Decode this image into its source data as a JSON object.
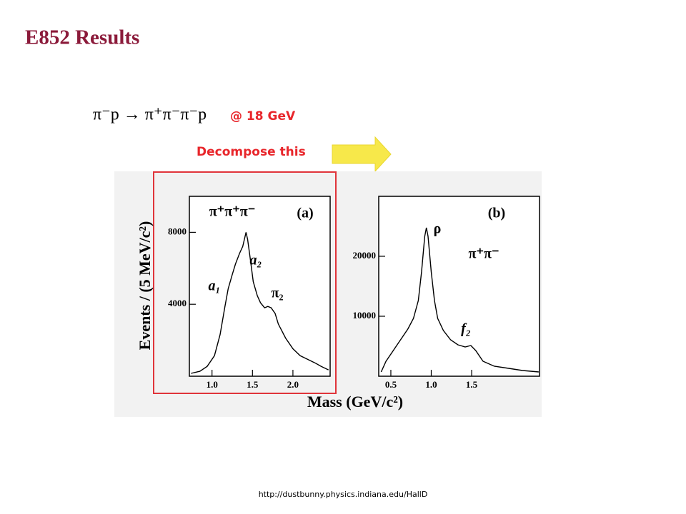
{
  "title": "E852 Results",
  "reaction": "π⁻p → π⁺π⁻π⁻p",
  "energy": "@ 18 GeV",
  "decompose_label": "Decompose this",
  "footer_url": "http://dustbunny.physics.indiana.edu/HallD",
  "figure": {
    "y_label": "Events / (5 MeV/c²)",
    "x_label": "Mass (GeV/c²)"
  },
  "chart_data": [
    {
      "type": "line",
      "annotations": [
        "π⁺π⁺π⁻",
        "(a)",
        "a₂",
        "a₁",
        "π₂"
      ],
      "xlim": [
        0.72,
        2.46
      ],
      "xticks": [
        {
          "value": 1.0,
          "label": "1.0"
        },
        1.5,
        {
          "value": 2.0,
          "label": "2.0"
        }
      ],
      "ylim": [
        0,
        10000
      ],
      "yticks": [
        4000,
        8000
      ],
      "series": [
        {
          "color": "#000000",
          "x": [
            0.74,
            0.85,
            0.94,
            1.03,
            1.1,
            1.16,
            1.2,
            1.25,
            1.29,
            1.34,
            1.38,
            1.42,
            1.44,
            1.47,
            1.51,
            1.56,
            1.6,
            1.65,
            1.69,
            1.73,
            1.78,
            1.82,
            1.91,
            2.0,
            2.09,
            2.18,
            2.27,
            2.35,
            2.44
          ],
          "values": [
            157,
            275,
            549,
            1137,
            2314,
            3882,
            4863,
            5647,
            6235,
            6824,
            7216,
            8000,
            7608,
            6627,
            5255,
            4471,
            4078,
            3804,
            3882,
            3804,
            3490,
            2902,
            2118,
            1529,
            1137,
            941,
            745,
            549,
            353
          ]
        }
      ]
    },
    {
      "type": "line",
      "annotations": [
        "ρ",
        "(b)",
        "π⁺π⁻",
        "f₂"
      ],
      "xlim": [
        0.35,
        2.34
      ],
      "xticks": [
        0.5,
        {
          "value": 1.0,
          "label": "1.0"
        },
        1.5
      ],
      "ylim": [
        0,
        30000
      ],
      "yticks": [
        10000,
        20000
      ],
      "series": [
        {
          "color": "#000000",
          "x": [
            0.38,
            0.44,
            0.53,
            0.62,
            0.71,
            0.78,
            0.84,
            0.88,
            0.92,
            0.94,
            0.96,
            1.0,
            1.04,
            1.08,
            1.15,
            1.24,
            1.33,
            1.42,
            1.49,
            1.55,
            1.64,
            1.78,
            1.96,
            2.13,
            2.33
          ],
          "values": [
            714,
            2500,
            4286,
            6071,
            7857,
            9643,
            12619,
            17381,
            23333,
            24762,
            23333,
            17381,
            12619,
            9643,
            7619,
            6071,
            5238,
            4881,
            5119,
            4286,
            2500,
            1667,
            1310,
            952,
            714
          ]
        }
      ]
    }
  ]
}
